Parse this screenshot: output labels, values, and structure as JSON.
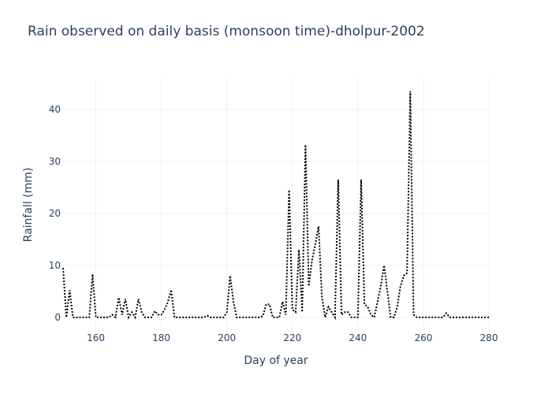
{
  "chart_data": {
    "type": "line",
    "title": "Rain observed on daily basis (monsoon time)-dholpur-2002",
    "x_label": "Day of year",
    "y_label": "Rainfall (mm)",
    "x": [
      150,
      151,
      152,
      153,
      154,
      155,
      156,
      157,
      158,
      159,
      160,
      161,
      162,
      163,
      164,
      165,
      166,
      167,
      168,
      169,
      170,
      171,
      172,
      173,
      174,
      175,
      176,
      177,
      178,
      179,
      180,
      181,
      182,
      183,
      184,
      185,
      186,
      187,
      188,
      189,
      190,
      191,
      192,
      193,
      194,
      195,
      196,
      197,
      198,
      199,
      200,
      201,
      202,
      203,
      204,
      205,
      206,
      207,
      208,
      209,
      210,
      211,
      212,
      213,
      214,
      215,
      216,
      217,
      218,
      219,
      220,
      221,
      222,
      223,
      224,
      225,
      226,
      227,
      228,
      229,
      230,
      231,
      232,
      233,
      234,
      235,
      236,
      237,
      238,
      239,
      240,
      241,
      242,
      243,
      244,
      245,
      246,
      247,
      248,
      249,
      250,
      251,
      252,
      253,
      254,
      255,
      256,
      257,
      258,
      259,
      260,
      261,
      262,
      263,
      264,
      265,
      266,
      267,
      268,
      269,
      270,
      271,
      272,
      273,
      274,
      275,
      276,
      277,
      278,
      279,
      280
    ],
    "series": [
      {
        "color": "#000000",
        "values": [
          9.5,
          0,
          5.2,
          0,
          0,
          0,
          0,
          0,
          0,
          8.3,
          0,
          0,
          0,
          0,
          0,
          0.5,
          0,
          3.8,
          0.5,
          3.5,
          0,
          1,
          0,
          3.5,
          1,
          0,
          0,
          0,
          1.2,
          0.5,
          0.5,
          1.5,
          3,
          5.3,
          0,
          0,
          0,
          0,
          0,
          0,
          0,
          0,
          0,
          0,
          0.3,
          0,
          0,
          0,
          0,
          0,
          1,
          8,
          3,
          0,
          0,
          0,
          0,
          0,
          0,
          0,
          0,
          0.2,
          2.5,
          2.5,
          0,
          0,
          0,
          3,
          0.5,
          24.5,
          1.5,
          1,
          13,
          1,
          33.2,
          6,
          11,
          14,
          17.5,
          4,
          0,
          2,
          1,
          0,
          26.5,
          0.5,
          1,
          1,
          0,
          0,
          0,
          26.5,
          2.5,
          2,
          0.5,
          0,
          3,
          6,
          10,
          5,
          0,
          0,
          2,
          6,
          8,
          8.5,
          43.5,
          0.5,
          0,
          0,
          0,
          0,
          0,
          0,
          0,
          0,
          0,
          0.8,
          0,
          0,
          0,
          0,
          0,
          0,
          0,
          0,
          0,
          0,
          0,
          0,
          0
        ]
      }
    ],
    "xlim": [
      150,
      280
    ],
    "ylim": [
      -2.6,
      45.9
    ],
    "xticks": [
      160,
      180,
      200,
      220,
      240,
      260,
      280
    ],
    "yticks": [
      0,
      10,
      20,
      30,
      40
    ],
    "grid": true
  }
}
